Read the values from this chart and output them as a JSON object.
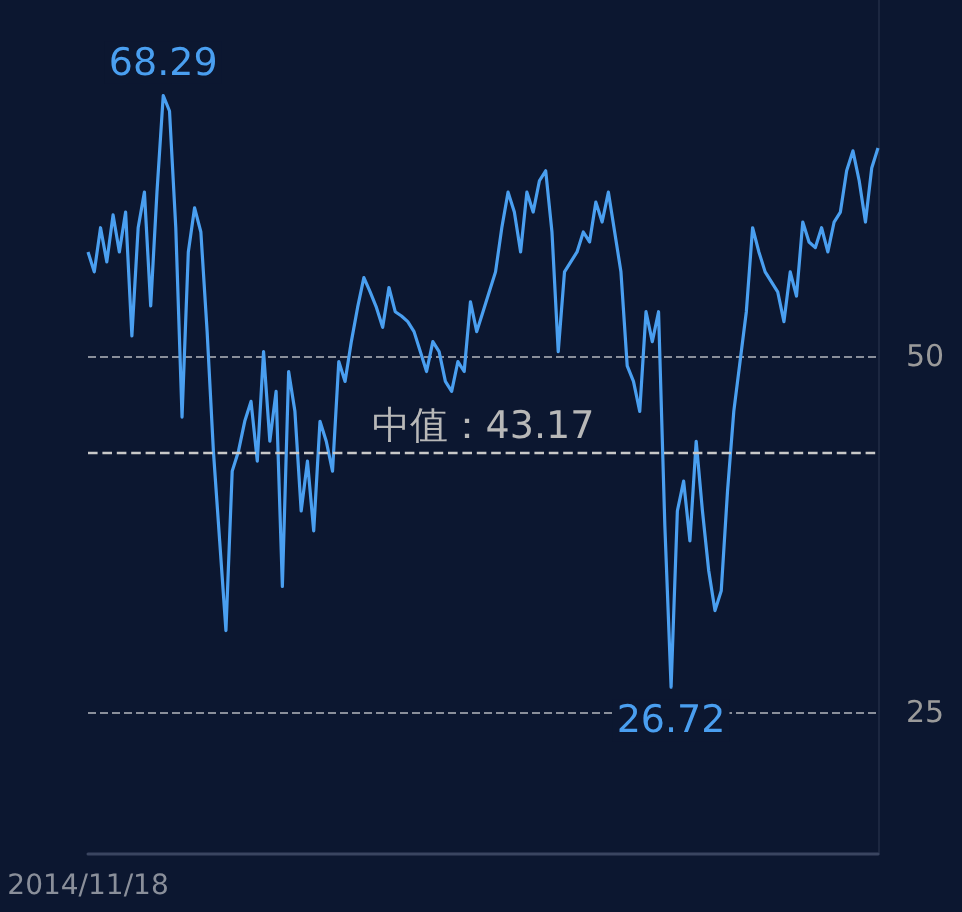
{
  "chart_data": {
    "type": "line",
    "categories": [
      "2014/11/18",
      null,
      null,
      null,
      null,
      null,
      null,
      null,
      null,
      null,
      null,
      null,
      null,
      null,
      null,
      null,
      null,
      null,
      null,
      null,
      null,
      null,
      null,
      null,
      null,
      null,
      null,
      null,
      null,
      null,
      null,
      null,
      null,
      null,
      null,
      null,
      null,
      null,
      null,
      null,
      null,
      null,
      null,
      null,
      null,
      null,
      null,
      null,
      null,
      null,
      null,
      null,
      null,
      null,
      null,
      null,
      null,
      null,
      null,
      null,
      null,
      null,
      null,
      null,
      null,
      null,
      null,
      null,
      null,
      null,
      null,
      null,
      null,
      null,
      null,
      null,
      null,
      null,
      null,
      null,
      null,
      null,
      null,
      null,
      null,
      null,
      null,
      null,
      null,
      null,
      null,
      null,
      null,
      null,
      null,
      null,
      null,
      null,
      null,
      null,
      null,
      null,
      null,
      null,
      null,
      null,
      null,
      null,
      null,
      null,
      null,
      null,
      null,
      null,
      null,
      null,
      null,
      null,
      null,
      null,
      null,
      null,
      null,
      null,
      null,
      null,
      null
    ],
    "series": [
      {
        "color": "#4a9ff0",
        "values": [
          57.3,
          55.9,
          59.0,
          56.6,
          59.9,
          57.3,
          60.1,
          51.4,
          59.0,
          61.5,
          53.5,
          61.5,
          68.29,
          67.2,
          59.0,
          45.7,
          57.3,
          60.4,
          58.7,
          51.7,
          43.3,
          37.0,
          30.7,
          41.9,
          43.3,
          45.4,
          46.8,
          42.6,
          50.3,
          44.0,
          47.5,
          33.8,
          48.9,
          46.1,
          39.1,
          42.6,
          37.7,
          45.4,
          44.0,
          41.9,
          49.6,
          48.2,
          51.0,
          53.4,
          55.5,
          54.5,
          53.4,
          52.0,
          54.8,
          53.1,
          52.8,
          52.4,
          51.7,
          50.3,
          48.9,
          51.0,
          50.3,
          48.2,
          47.5,
          49.6,
          48.9,
          53.8,
          51.7,
          53.1,
          54.5,
          55.9,
          59.0,
          61.5,
          60.1,
          57.3,
          61.5,
          60.1,
          62.3,
          63.0,
          58.7,
          50.3,
          55.9,
          56.6,
          57.3,
          58.7,
          58.0,
          60.8,
          59.4,
          61.5,
          58.7,
          55.9,
          49.3,
          48.2,
          46.1,
          53.1,
          51.0,
          53.1,
          38.1,
          26.72,
          39.1,
          41.2,
          37.0,
          44.0,
          39.1,
          34.9,
          32.1,
          33.5,
          40.5,
          46.1,
          49.6,
          53.1,
          59.0,
          57.3,
          55.9,
          55.2,
          54.5,
          52.4,
          55.9,
          54.2,
          59.4,
          58.0,
          57.6,
          59.0,
          57.3,
          59.4,
          60.1,
          63.0,
          64.4,
          62.3,
          59.4,
          63.2,
          64.6
        ],
        "value_labels": [
          null,
          null,
          null,
          null,
          null,
          null,
          null,
          null,
          null,
          null,
          null,
          null,
          "68.29",
          null,
          null,
          null,
          null,
          null,
          null,
          null,
          null,
          null,
          null,
          null,
          null,
          null,
          null,
          null,
          null,
          null,
          null,
          null,
          null,
          null,
          null,
          null,
          null,
          null,
          null,
          null,
          null,
          null,
          null,
          null,
          null,
          null,
          null,
          null,
          null,
          null,
          null,
          null,
          null,
          null,
          null,
          null,
          null,
          null,
          null,
          null,
          null,
          null,
          null,
          null,
          null,
          null,
          null,
          null,
          null,
          null,
          null,
          null,
          null,
          null,
          null,
          null,
          null,
          null,
          null,
          null,
          null,
          null,
          null,
          null,
          null,
          null,
          null,
          null,
          null,
          null,
          null,
          null,
          null,
          "26.72",
          null,
          null,
          null,
          null,
          null,
          null,
          null,
          null,
          null,
          null,
          null,
          null,
          null,
          null,
          null,
          null,
          null,
          null,
          null,
          null,
          null,
          null,
          null,
          null,
          null,
          null,
          null,
          null,
          null,
          null,
          null,
          null,
          null
        ]
      }
    ],
    "ylim": [
      15,
      75
    ],
    "yticks": [
      25,
      50
    ],
    "grid": "y",
    "ref_lines": [
      {
        "axis": "y",
        "value": 43.17,
        "label": "中值：43.17",
        "color": "#c8c8c8",
        "line_style": "dashed"
      }
    ]
  }
}
